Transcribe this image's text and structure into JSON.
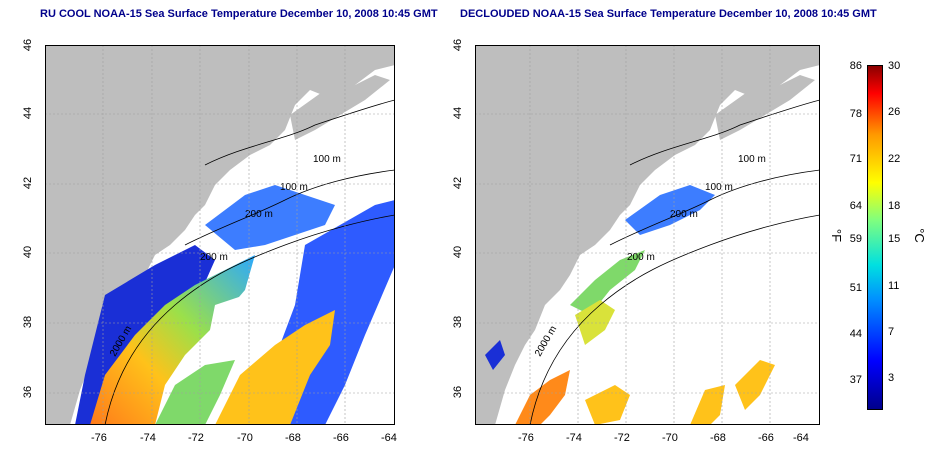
{
  "colors": {
    "title": "#00008b",
    "land": "#bebebe",
    "ocean": "#ffffff",
    "contour": "#000000",
    "grid": "#a0a0a0"
  },
  "left_map": {
    "title": "RU COOL NOAA-15 Sea Surface Temperature December 10, 2008 10:45 GMT",
    "x_ticks": [
      "-76",
      "-74",
      "-72",
      "-70",
      "-68",
      "-66",
      "-64"
    ],
    "y_ticks": [
      "36",
      "38",
      "40",
      "42",
      "44",
      "46"
    ],
    "contour_labels": [
      "100 m",
      "100 m",
      "200 m",
      "200 m",
      "2000 m"
    ]
  },
  "right_map": {
    "title": "DECLOUDED NOAA-15 Sea Surface Temperature December 10, 2008 10:45 GMT",
    "x_ticks": [
      "-76",
      "-74",
      "-72",
      "-70",
      "-68",
      "-66",
      "-64"
    ],
    "y_ticks": [
      "36",
      "38",
      "40",
      "42",
      "44",
      "46"
    ],
    "contour_labels": [
      "100 m",
      "100 m",
      "200 m",
      "200 m",
      "2000 m"
    ]
  },
  "colorbar": {
    "f_label": "°F",
    "c_label": "°C",
    "f_ticks": [
      "86",
      "78",
      "71",
      "64",
      "59",
      "51",
      "44",
      "37"
    ],
    "c_ticks": [
      "30",
      "26",
      "22",
      "18",
      "15",
      "11",
      "7",
      "3"
    ]
  }
}
